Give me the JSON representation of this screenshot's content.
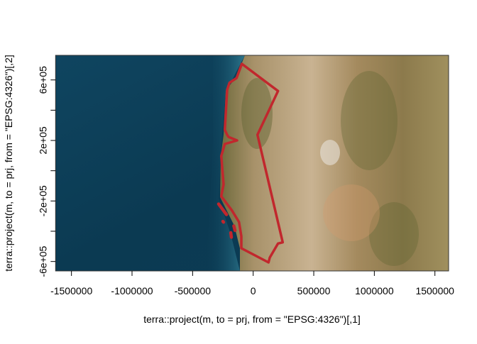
{
  "chart_data": {
    "type": "line",
    "xlabel": "terra::project(m, to = prj, from = \"EPSG:4326\")[,1]",
    "ylabel": "terra::project(m, to = prj, from = \"EPSG:4326\")[,2]",
    "xlim": [
      -1631000,
      1613000
    ],
    "ylim": [
      -662500,
      762700
    ],
    "xticks": [
      -1500000,
      -1000000,
      -500000,
      0,
      500000,
      1000000,
      1500000
    ],
    "xtick_labels": [
      "-1500000",
      "-1000000",
      "-500000",
      "0",
      "500000",
      "1000000",
      "1500000"
    ],
    "yticks": [
      -600000,
      -400000,
      -200000,
      0,
      200000,
      400000,
      600000
    ],
    "ytick_labels": [
      "-6e+05",
      "",
      "-2e+05",
      "",
      "2e+05",
      "",
      "6e+05"
    ],
    "grid": false,
    "background": "satellite raster image (ocean left, western North America land right)",
    "colors": {
      "outline": "#c1272d",
      "ocean": "#0c3b52",
      "land": "#b39a74"
    },
    "series": [
      {
        "x": [
          -93700,
          205000,
          35000,
          243700,
          205000,
          136500,
          126500,
          -97800,
          -97800,
          -117200,
          -175700,
          -263600,
          -244300,
          -263600,
          -234300,
          -133000,
          -203000,
          -215000,
          -234300,
          -215000,
          -195700,
          -137100,
          -93700
        ],
        "y": [
          706500,
          527000,
          237700,
          -473500,
          -481000,
          -574800,
          -606200,
          -512400,
          -432700,
          -339000,
          -262500,
          -168800,
          -90500,
          97000,
          176700,
          200000,
          223000,
          237000,
          270500,
          534500,
          581300,
          612700,
          706500
        ]
      },
      {
        "x": [
          -285000,
          -220000
        ],
        "y": [
          -220000,
          -290000
        ]
      },
      {
        "x": [
          -250000,
          -245000
        ],
        "y": [
          -335000,
          -340000
        ]
      },
      {
        "x": [
          -160000,
          -150000
        ],
        "y": [
          -365000,
          -395000
        ]
      },
      {
        "x": [
          -185000,
          -180000
        ],
        "y": [
          -410000,
          -440000
        ]
      }
    ]
  }
}
